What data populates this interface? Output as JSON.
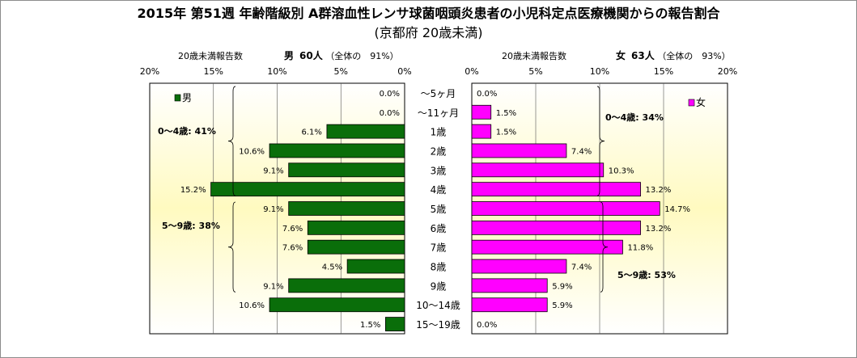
{
  "title": "2015年 第51週 年齢階級別 A群溶血性レンサ球菌咽頭炎患者の小児科定点医療機関からの報告割合",
  "subtitle": "(京都府 20歳未満)",
  "left_header": {
    "label": "20歳未満報告数",
    "sex": "男",
    "count": "60人",
    "share": "（全体の　91%）"
  },
  "right_header": {
    "label": "20歳未満報告数",
    "sex": "女",
    "count": "63人",
    "share": "（全体の　93%）"
  },
  "colors": {
    "male": "#0a6e0a",
    "female": "#ff00ff",
    "plot_top": "#ffffff",
    "plot_mid": "#fffac0"
  },
  "chart_data": {
    "type": "bar",
    "orientation": "horizontal-butterfly",
    "categories": [
      "〜5ヶ月",
      "〜11ヶ月",
      "1歳",
      "2歳",
      "3歳",
      "4歳",
      "5歳",
      "6歳",
      "7歳",
      "8歳",
      "9歳",
      "10〜14歳",
      "15〜19歳"
    ],
    "xlim": [
      0,
      20
    ],
    "x_ticks": [
      "20%",
      "15%",
      "10%",
      "5%",
      "0%"
    ],
    "x_ticks_right": [
      "0%",
      "5%",
      "10%",
      "15%",
      "20%"
    ],
    "series": [
      {
        "name": "男",
        "side": "left",
        "values": [
          0.0,
          0.0,
          6.1,
          10.6,
          9.1,
          15.2,
          9.1,
          7.6,
          7.6,
          4.5,
          9.1,
          10.6,
          1.5
        ],
        "labels": [
          "0.0%",
          "0.0%",
          "6.1%",
          "10.6%",
          "9.1%",
          "15.2%",
          "9.1%",
          "7.6%",
          "7.6%",
          "4.5%",
          "9.1%",
          "10.6%",
          "1.5%"
        ]
      },
      {
        "name": "女",
        "side": "right",
        "values": [
          0.0,
          1.5,
          1.5,
          7.4,
          10.3,
          13.2,
          14.7,
          13.2,
          11.8,
          7.4,
          5.9,
          5.9,
          0.0
        ],
        "labels": [
          "0.0%",
          "1.5%",
          "1.5%",
          "7.4%",
          "10.3%",
          "13.2%",
          "14.7%",
          "13.2%",
          "11.8%",
          "7.4%",
          "5.9%",
          "5.9%",
          "0.0%"
        ]
      }
    ],
    "annotations": {
      "male_0_4": "0〜4歳: 41%",
      "male_5_9": "5〜9歳: 38%",
      "female_0_4": "0〜4歳: 34%",
      "female_5_9": "5〜9歳: 53%"
    },
    "legend": {
      "male": "男",
      "female": "女"
    }
  }
}
